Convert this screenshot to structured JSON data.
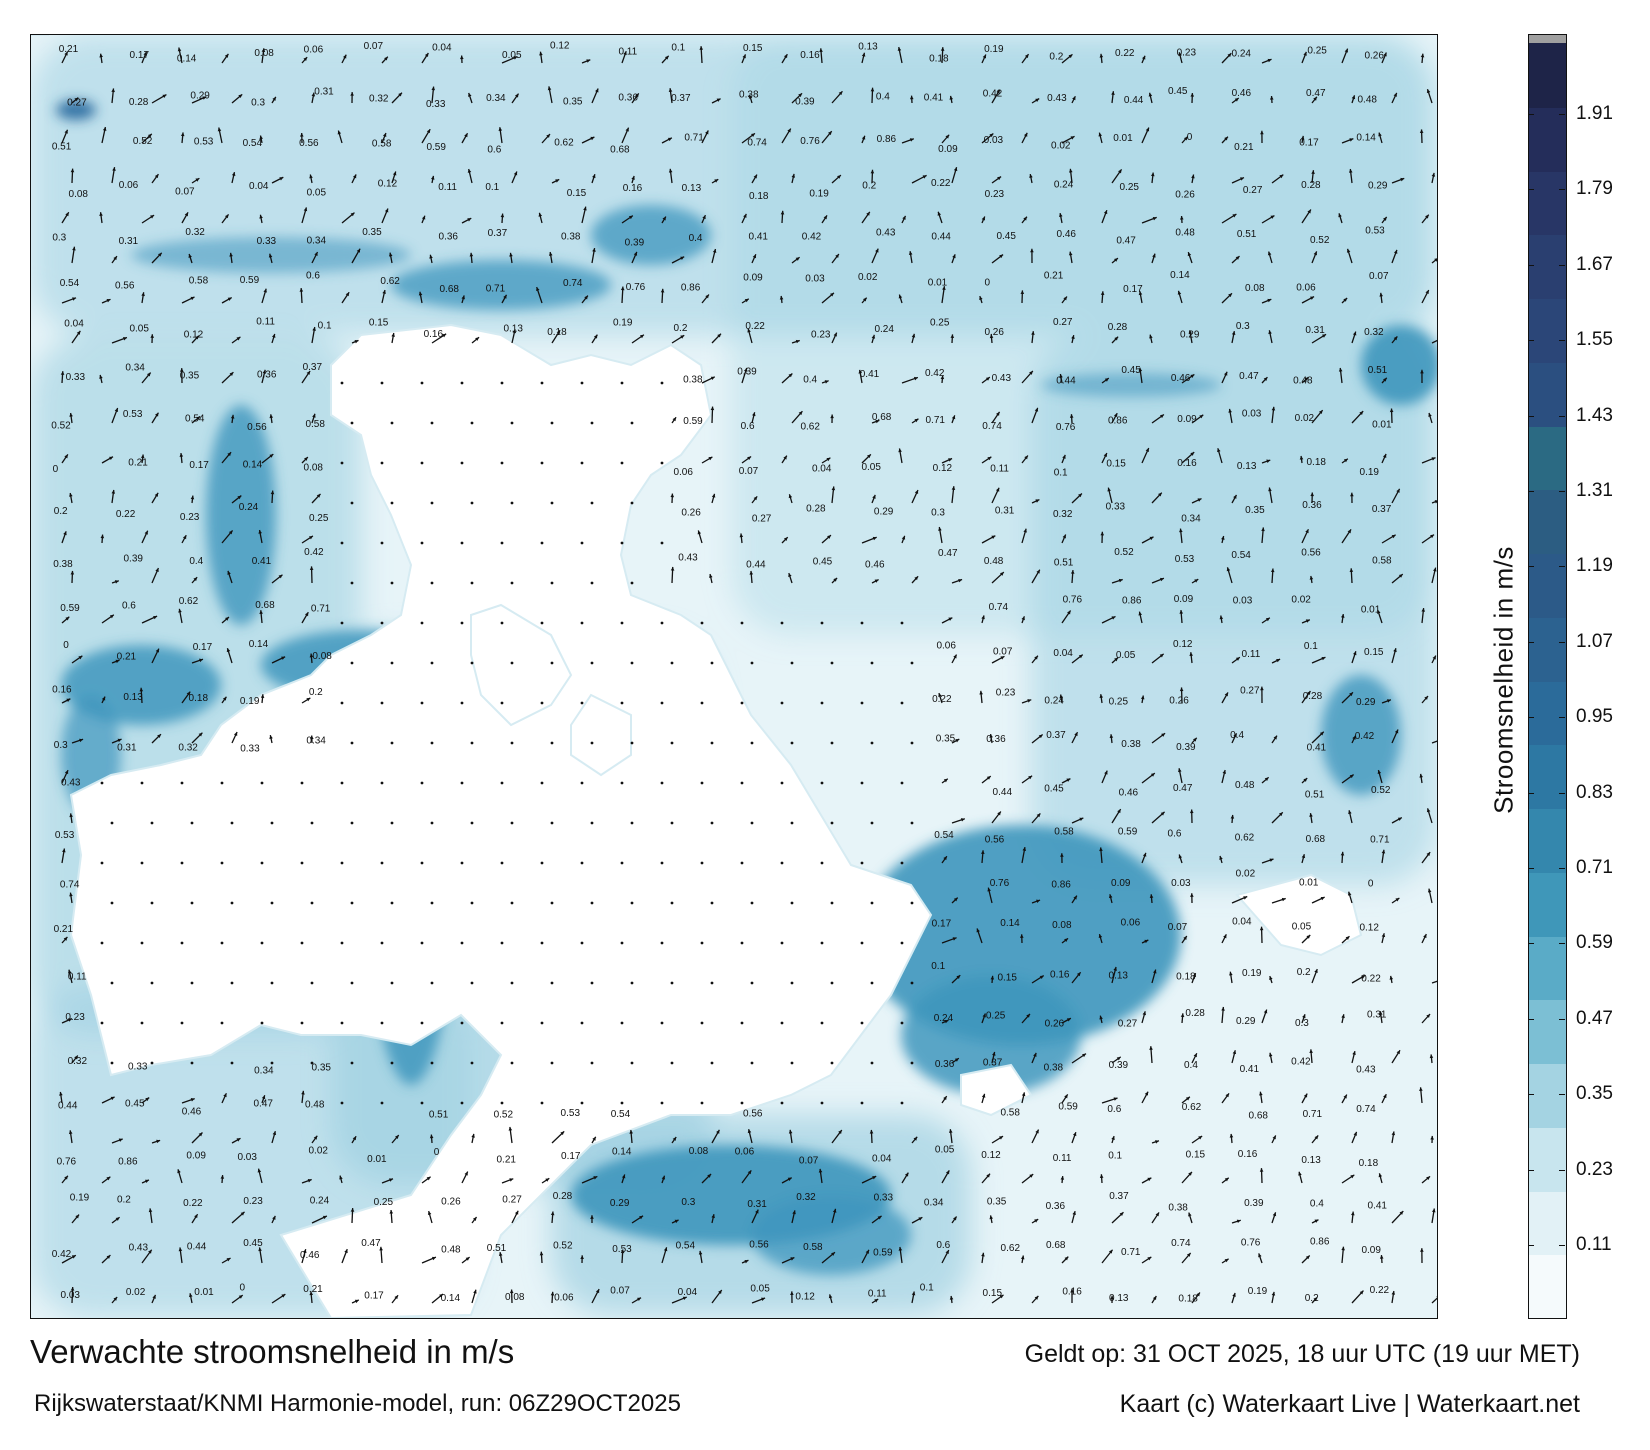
{
  "footer": {
    "title": "Verwachte stroomsnelheid in m/s",
    "subtitle": "Rijkswaterstaat/KNMI Harmonie-model, run: 06Z29OCT2025",
    "valid": "Geldt op: 31 OCT 2025, 18 uur UTC (19 uur MET)",
    "credit": "Kaart (c) Waterkaart Live | Waterkaart.net"
  },
  "colorbar": {
    "label": "Stroomsnelheid in m/s",
    "ticks": [
      "0.11",
      "0.23",
      "0.35",
      "0.47",
      "0.59",
      "0.71",
      "0.83",
      "0.95",
      "1.07",
      "1.19",
      "1.31",
      "1.43",
      "1.55",
      "1.67",
      "1.79",
      "1.91"
    ],
    "colors": [
      "#f5fafc",
      "#e2f1f6",
      "#c8e5ee",
      "#a4d3e2",
      "#7cbfd4",
      "#5aabc7",
      "#3f97b9",
      "#3487ad",
      "#2d78a3",
      "#2b6b9a",
      "#2c6290",
      "#2c5a88",
      "#2c5d82",
      "#2b6a83",
      "#2b4f80",
      "#2b4678",
      "#2a3f70",
      "#283666",
      "#242d5a",
      "#1e2448",
      "#a0a0a0"
    ]
  },
  "colors": {
    "water_light": "#e6f3f8",
    "water_mid": "#9fd0e1",
    "water_deep": "#3f96bd",
    "water_darkest": "#2a6a9e",
    "land": "#ffffff",
    "arrow": "#111111"
  },
  "velocity_labels": [
    "0.21",
    "0.17",
    "0.14",
    "0.08",
    "0.06",
    "0.07",
    "0.04",
    "0.05",
    "0.12",
    "0.11",
    "0.1",
    "0.15",
    "0.16",
    "0.13",
    "0.18",
    "0.19",
    "0.2",
    "0.22",
    "0.23",
    "0.24",
    "0.25",
    "0.26",
    "0.27",
    "0.28",
    "0.29",
    "0.3",
    "0.31",
    "0.32",
    "0.33",
    "0.34",
    "0.35",
    "0.36",
    "0.37",
    "0.38",
    "0.39",
    "0.4",
    "0.41",
    "0.42",
    "0.43",
    "0.44",
    "0.45",
    "0.46",
    "0.47",
    "0.48",
    "0.51",
    "0.52",
    "0.53",
    "0.54",
    "0.56",
    "0.58",
    "0.59",
    "0.6",
    "0.62",
    "0.68",
    "0.71",
    "0.74",
    "0.76",
    "0.86",
    "0.09",
    "0.03",
    "0.02",
    "0.01",
    "0"
  ]
}
